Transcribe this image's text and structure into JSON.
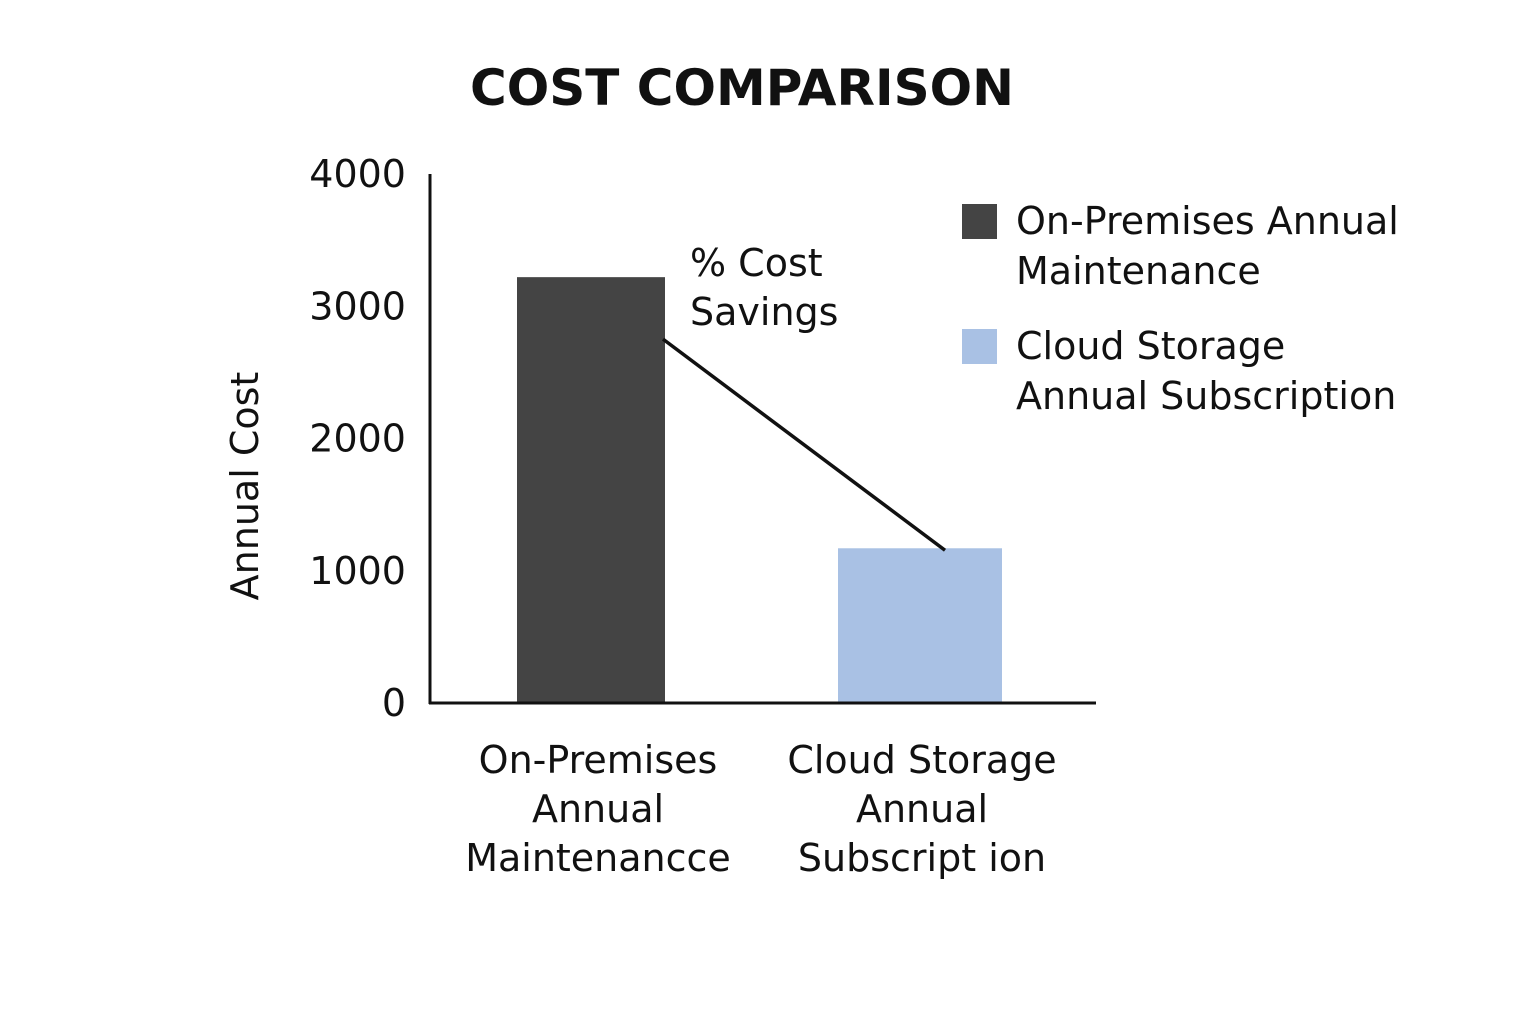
{
  "chart_data": {
    "type": "bar",
    "title": "COST COMPARISON",
    "ylabel": "Annual Cost",
    "xlabel": "",
    "ylim": [
      0,
      4000
    ],
    "yticks": [
      "0",
      "1000",
      "2000",
      "3000",
      "4000"
    ],
    "categories": [
      [
        "On-Premises",
        "Annual",
        "Maintenancce"
      ],
      [
        "Cloud Storage",
        "Annual",
        "Subscript ion"
      ]
    ],
    "values": [
      3220,
      1170
    ],
    "colors": [
      "#444444",
      "#a9c1e4"
    ],
    "legend": {
      "placement": "top-right",
      "entries": [
        {
          "lines": [
            "On-Premises Annual",
            "Maintenance"
          ],
          "color": "#444444"
        },
        {
          "lines": [
            "Cloud Storage",
            "Annual Subscription"
          ],
          "color": "#a9c1e4"
        }
      ]
    },
    "annotation": {
      "lines": [
        "% Cost",
        "Savings"
      ],
      "connects": "bar tops"
    },
    "grid": false
  }
}
